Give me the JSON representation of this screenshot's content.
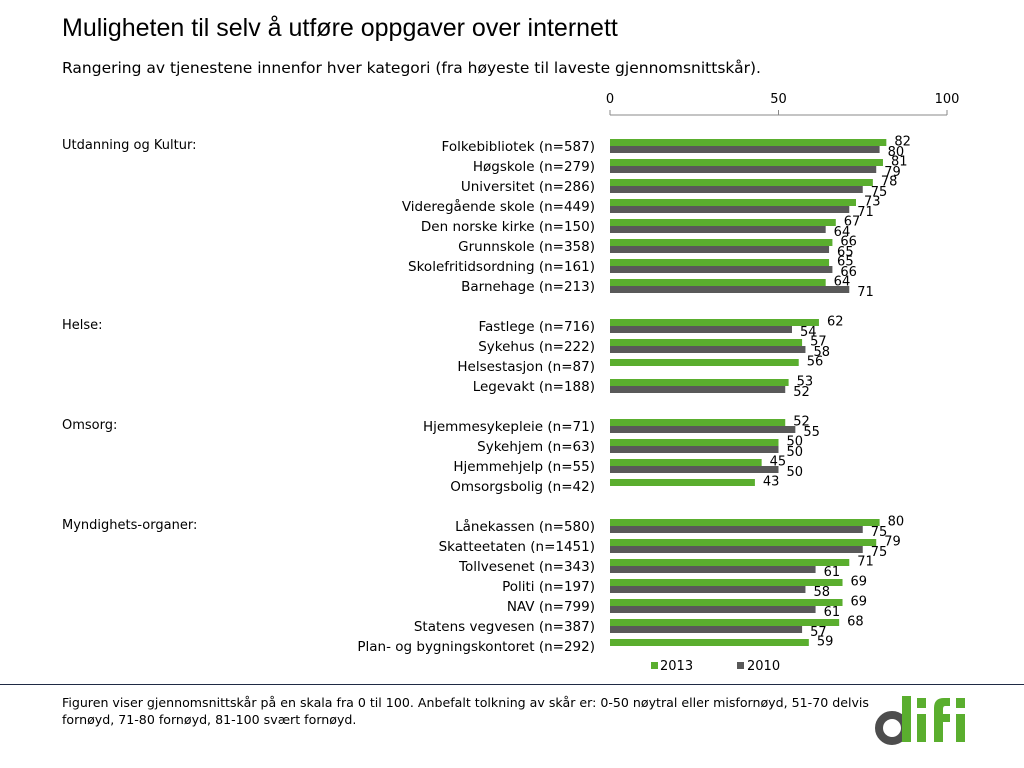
{
  "page": {
    "title": "Muligheten til selv å utføre oppgaver over internett",
    "subtitle": "Rangering av tjenestene innenfor hver kategori (fra høyeste til laveste gjennomsnittskår).",
    "footer": "Figuren viser gjennomsnittskår på en skala fra 0 til 100. Anbefalt tolkning av skår er: 0-50 nøytral eller misfornøyd, 51-70 delvis fornøyd, 71-80 fornøyd, 81-100 svært fornøyd.",
    "logo_text": "difi"
  },
  "colors": {
    "series_2013": "#5aae2e",
    "series_2010": "#595959",
    "logo_green": "#5aae2e",
    "logo_dark": "#4d4d4d"
  },
  "chart_data": {
    "type": "bar",
    "orientation": "horizontal",
    "xlim": [
      0,
      100
    ],
    "xticks": [
      0,
      50,
      100
    ],
    "axis_position": "top",
    "grid": false,
    "legend_position": "bottom",
    "series_names": [
      "2013",
      "2010"
    ],
    "groups": [
      {
        "label": "Utdanning og Kultur:",
        "items": [
          {
            "label": "Folkebibliotek (n=587)",
            "v2013": 82,
            "v2010": 80
          },
          {
            "label": "Høgskole (n=279)",
            "v2013": 81,
            "v2010": 79
          },
          {
            "label": "Universitet (n=286)",
            "v2013": 78,
            "v2010": 75
          },
          {
            "label": "Videregående skole (n=449)",
            "v2013": 73,
            "v2010": 71
          },
          {
            "label": "Den norske kirke (n=150)",
            "v2013": 67,
            "v2010": 64
          },
          {
            "label": "Grunnskole (n=358)",
            "v2013": 66,
            "v2010": 65
          },
          {
            "label": "Skolefritidsordning (n=161)",
            "v2013": 65,
            "v2010": 66
          },
          {
            "label": "Barnehage (n=213)",
            "v2013": 64,
            "v2010": 71
          }
        ]
      },
      {
        "label": "Helse:",
        "items": [
          {
            "label": "Fastlege (n=716)",
            "v2013": 62,
            "v2010": 54
          },
          {
            "label": "Sykehus (n=222)",
            "v2013": 57,
            "v2010": 58
          },
          {
            "label": "Helsestasjon (n=87)",
            "v2013": 56,
            "v2010": null
          },
          {
            "label": "Legevakt (n=188)",
            "v2013": 53,
            "v2010": 52
          }
        ]
      },
      {
        "label": "Omsorg:",
        "items": [
          {
            "label": "Hjemmesykepleie (n=71)",
            "v2013": 52,
            "v2010": 55
          },
          {
            "label": "Sykehjem (n=63)",
            "v2013": 50,
            "v2010": 50
          },
          {
            "label": "Hjemmehjelp (n=55)",
            "v2013": 45,
            "v2010": 50
          },
          {
            "label": "Omsorgsbolig (n=42)",
            "v2013": 43,
            "v2010": null
          }
        ]
      },
      {
        "label": "Myndighets-organer:",
        "items": [
          {
            "label": "Lånekassen (n=580)",
            "v2013": 80,
            "v2010": 75
          },
          {
            "label": "Skatteetaten (n=1451)",
            "v2013": 79,
            "v2010": 75
          },
          {
            "label": "Tollvesenet (n=343)",
            "v2013": 71,
            "v2010": 61
          },
          {
            "label": "Politi (n=197)",
            "v2013": 69,
            "v2010": 58
          },
          {
            "label": "NAV (n=799)",
            "v2013": 69,
            "v2010": 61
          },
          {
            "label": "Statens vegvesen (n=387)",
            "v2013": 68,
            "v2010": 57
          },
          {
            "label": "Plan- og bygningskontoret (n=292)",
            "v2013": 59,
            "v2010": null
          }
        ]
      }
    ]
  }
}
